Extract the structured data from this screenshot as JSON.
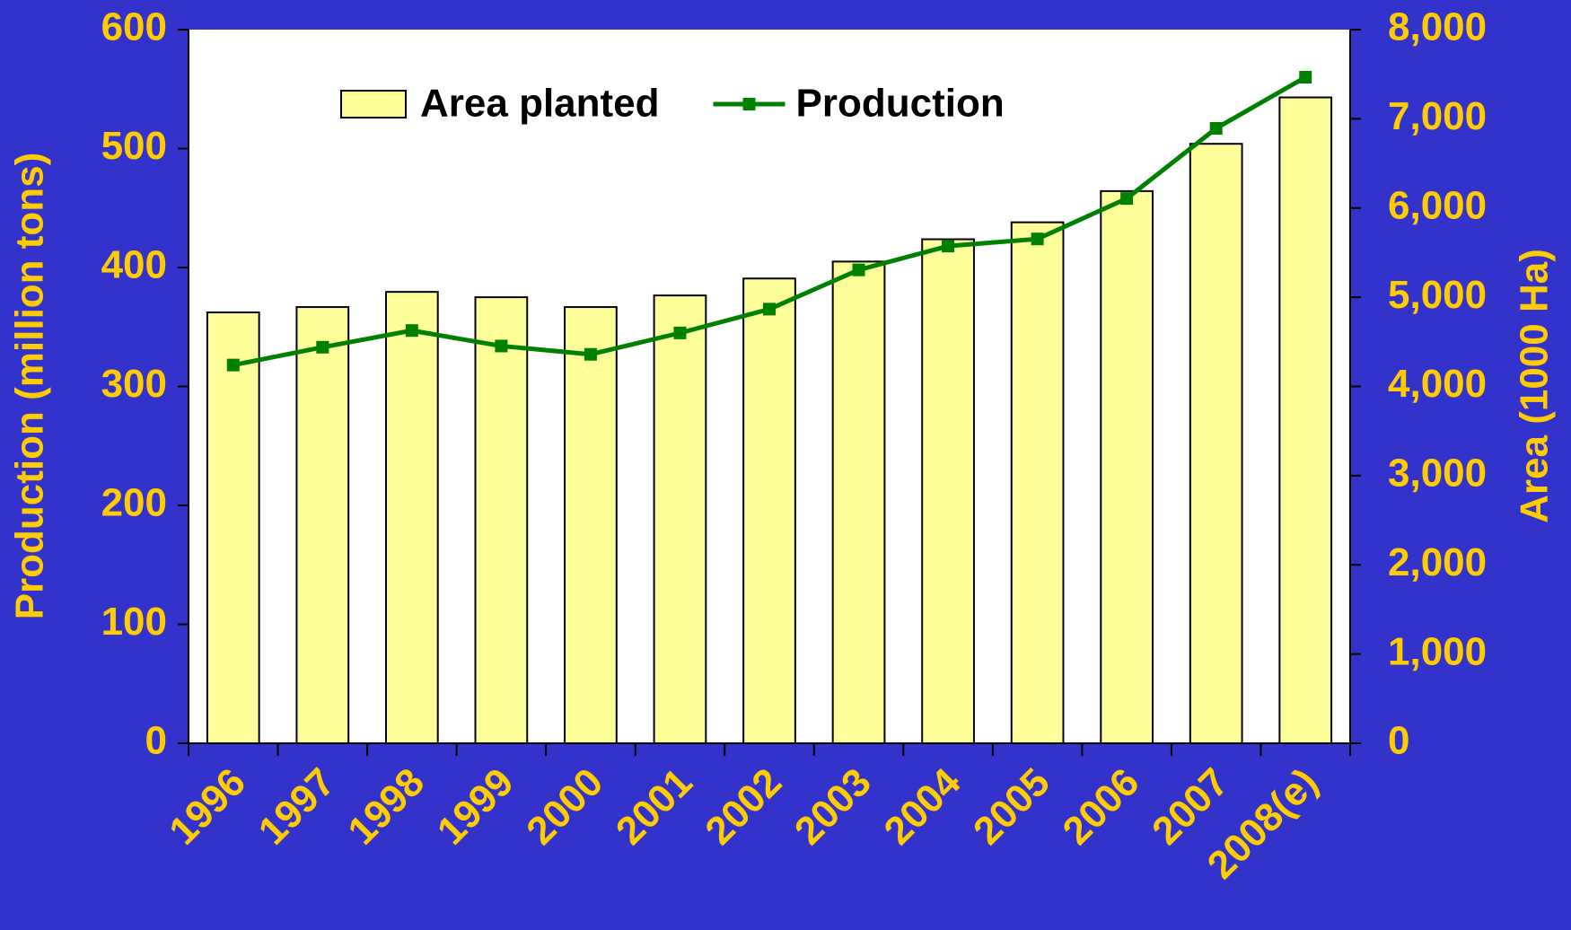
{
  "chart_data": {
    "type": "bar-line",
    "categories": [
      "1996",
      "1997",
      "1998",
      "1999",
      "2000",
      "2001",
      "2002",
      "2003",
      "2004",
      "2005",
      "2006",
      "2007",
      "2008(e)"
    ],
    "y_label": "Production (million tons)",
    "y2_label": "Area (1000 Ha)",
    "series": [
      {
        "name": "Area planted",
        "type": "bar",
        "axis": "y2",
        "color": "#ffff99",
        "values": [
          4830,
          4890,
          5060,
          5000,
          4890,
          5020,
          5210,
          5400,
          5650,
          5840,
          6190,
          6720,
          7240
        ]
      },
      {
        "name": "Production",
        "type": "line",
        "axis": "y",
        "color": "#008000",
        "values": [
          318,
          333,
          347,
          334,
          327,
          345,
          365,
          398,
          418,
          424,
          458,
          517,
          560
        ]
      }
    ],
    "ylim": [
      0,
      600
    ],
    "yticks": [
      0,
      100,
      200,
      300,
      400,
      500,
      600
    ],
    "y2lim": [
      0,
      8000
    ],
    "y2ticks": [
      0,
      {
        "value": 1000,
        "label": "1,000"
      },
      {
        "value": 2000,
        "label": "2,000"
      },
      {
        "value": 3000,
        "label": "3,000"
      },
      {
        "value": 4000,
        "label": "4,000"
      },
      {
        "value": 5000,
        "label": "5,000"
      },
      {
        "value": 6000,
        "label": "6,000"
      },
      {
        "value": 7000,
        "label": "7,000"
      },
      {
        "value": 8000,
        "label": "8,000"
      }
    ],
    "legend": "top"
  }
}
